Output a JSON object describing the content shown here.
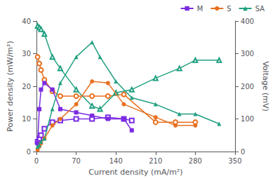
{
  "chart_data": {
    "type": "line",
    "xlabel": "Current density (mA/m²)",
    "ylabel": "Power density (mW/m²)",
    "y2label": "Voltage (mV)",
    "xlim": [
      0,
      350
    ],
    "xticks": [
      0,
      70,
      140,
      210,
      280,
      350
    ],
    "ylim": [
      0,
      40
    ],
    "yticks": [
      0,
      10,
      20,
      30,
      40
    ],
    "y2lim": [
      0,
      400
    ],
    "y2ticks": [
      0,
      100,
      200,
      300,
      400
    ],
    "grid": false,
    "legend": "upper right",
    "series": [
      {
        "name": "M",
        "color": "#7B2BE2",
        "marker": "square",
        "line_style": "solid",
        "x": [
          2,
          5,
          8,
          14,
          28,
          42,
          70,
          98,
          126,
          154,
          168
        ],
        "values": [
          2.5,
          13,
          19,
          21,
          19,
          13,
          12,
          11,
          10,
          10,
          6.5
        ]
      },
      {
        "name": "S",
        "color": "#E87020",
        "marker": "circle",
        "line_style": "solid",
        "x": [
          2,
          5,
          8,
          14,
          28,
          42,
          70,
          98,
          126,
          154,
          210,
          245,
          280
        ],
        "values": [
          0.5,
          1.5,
          2.5,
          4,
          8,
          10,
          14.5,
          21.5,
          21,
          14.5,
          10.5,
          8,
          8
        ]
      },
      {
        "name": "SA",
        "color": "#20A080",
        "marker": "triangle",
        "line_style": "solid",
        "x": [
          2,
          5,
          8,
          14,
          28,
          42,
          70,
          98,
          112,
          140,
          168,
          210,
          252,
          280,
          322
        ],
        "values": [
          1.5,
          2,
          3,
          4,
          13,
          21,
          29,
          33.5,
          29,
          21.5,
          16.5,
          14.5,
          11.5,
          11.5,
          8.5
        ]
      },
      {
        "color": "#7B2BE2",
        "marker": "open square",
        "line_style": "solid",
        "axis": "y2",
        "x": [
          2,
          5,
          8,
          14,
          28,
          42,
          70,
          98,
          126,
          154,
          168
        ],
        "values": [
          30,
          40,
          50,
          70,
          90,
          95,
          100,
          100,
          105,
          100,
          95
        ]
      },
      {
        "color": "#E87020",
        "marker": "open circle",
        "line_style": "solid",
        "axis": "y2",
        "x": [
          2,
          5,
          8,
          14,
          28,
          42,
          70,
          98,
          126,
          154,
          210,
          245,
          280
        ],
        "values": [
          290,
          270,
          250,
          220,
          185,
          170,
          170,
          170,
          170,
          175,
          90,
          90,
          90
        ]
      },
      {
        "color": "#20A080",
        "marker": "open triangle",
        "line_style": "solid",
        "axis": "y2",
        "x": [
          2,
          5,
          8,
          14,
          28,
          42,
          70,
          98,
          112,
          140,
          168,
          210,
          252,
          280,
          322
        ],
        "values": [
          385,
          380,
          375,
          360,
          290,
          255,
          190,
          140,
          130,
          180,
          190,
          225,
          255,
          280,
          280
        ]
      }
    ]
  }
}
